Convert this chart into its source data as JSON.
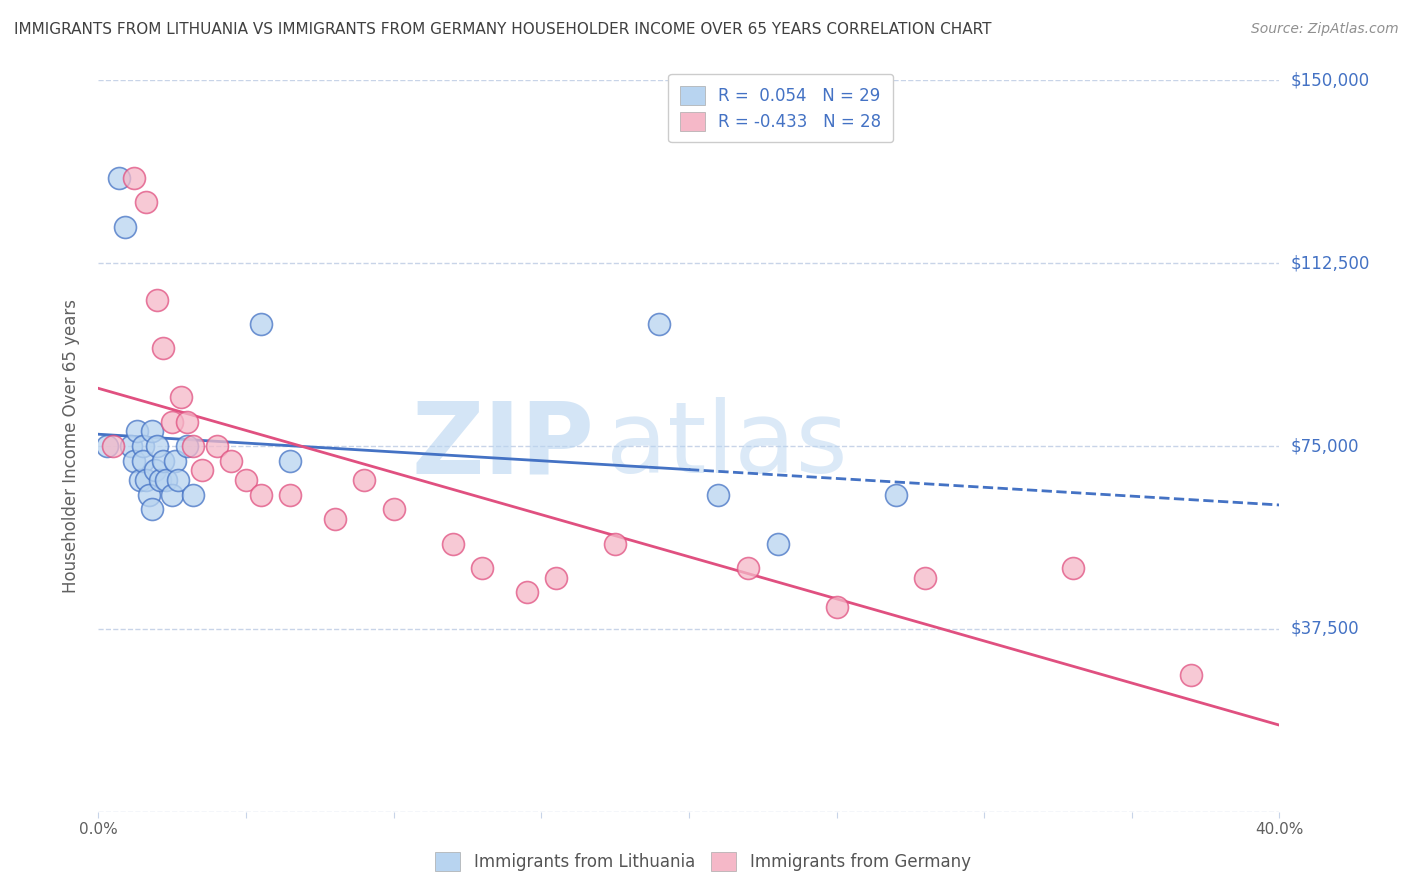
{
  "title": "IMMIGRANTS FROM LITHUANIA VS IMMIGRANTS FROM GERMANY HOUSEHOLDER INCOME OVER 65 YEARS CORRELATION CHART",
  "source": "Source: ZipAtlas.com",
  "ylabel": "Householder Income Over 65 years",
  "xlim": [
    0.0,
    0.4
  ],
  "ylim": [
    0,
    150000
  ],
  "yticks": [
    0,
    37500,
    75000,
    112500,
    150000
  ],
  "ytick_labels": [
    "",
    "$37,500",
    "$75,000",
    "$112,500",
    "$150,000"
  ],
  "watermark_part1": "ZIP",
  "watermark_part2": "atlas",
  "legend_r1": "R =  0.054   N = 29",
  "legend_r2": "R = -0.433   N = 28",
  "legend_label1": "Immigrants from Lithuania",
  "legend_label2": "Immigrants from Germany",
  "color_blue": "#b8d4f0",
  "color_pink": "#f5b8c8",
  "line_color_blue": "#4472c4",
  "line_color_pink": "#e05080",
  "background_color": "#ffffff",
  "grid_color": "#c8d4e8",
  "title_color": "#404040",
  "legend_text_color": "#4472c4",
  "lithuania_x": [
    0.003,
    0.007,
    0.009,
    0.011,
    0.012,
    0.013,
    0.014,
    0.015,
    0.015,
    0.016,
    0.017,
    0.018,
    0.018,
    0.019,
    0.02,
    0.021,
    0.022,
    0.023,
    0.025,
    0.026,
    0.027,
    0.03,
    0.032,
    0.055,
    0.065,
    0.19,
    0.21,
    0.23,
    0.27
  ],
  "lithuania_y": [
    75000,
    130000,
    120000,
    75000,
    72000,
    78000,
    68000,
    75000,
    72000,
    68000,
    65000,
    62000,
    78000,
    70000,
    75000,
    68000,
    72000,
    68000,
    65000,
    72000,
    68000,
    75000,
    65000,
    100000,
    72000,
    100000,
    65000,
    55000,
    65000
  ],
  "germany_x": [
    0.005,
    0.012,
    0.016,
    0.02,
    0.022,
    0.025,
    0.028,
    0.03,
    0.032,
    0.035,
    0.04,
    0.045,
    0.05,
    0.055,
    0.065,
    0.08,
    0.09,
    0.1,
    0.12,
    0.13,
    0.145,
    0.155,
    0.175,
    0.22,
    0.25,
    0.28,
    0.33,
    0.37
  ],
  "germany_y": [
    75000,
    130000,
    125000,
    105000,
    95000,
    80000,
    85000,
    80000,
    75000,
    70000,
    75000,
    72000,
    68000,
    65000,
    65000,
    60000,
    68000,
    62000,
    55000,
    50000,
    45000,
    48000,
    55000,
    50000,
    42000,
    48000,
    50000,
    28000
  ]
}
